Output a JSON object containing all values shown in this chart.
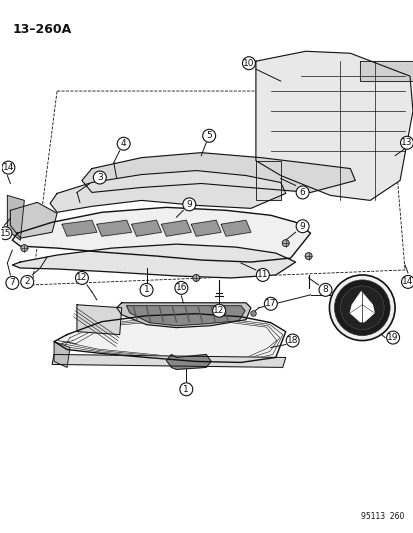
{
  "title": "13–260A",
  "footer": "95113  260",
  "bg_color": "#ffffff",
  "text_color": "#111111",
  "line_color": "#111111",
  "fig_width": 4.14,
  "fig_height": 5.33,
  "dpi": 100
}
